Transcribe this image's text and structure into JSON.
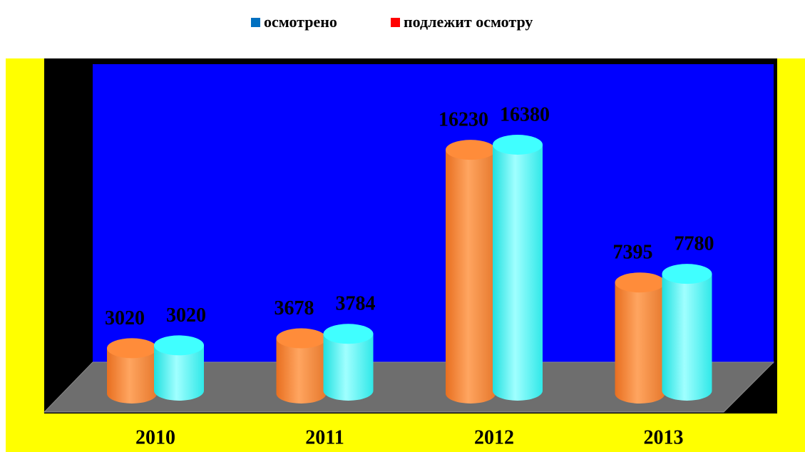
{
  "chart_data": {
    "type": "bar3d",
    "categories": [
      "2010",
      "2011",
      "2012",
      "2013"
    ],
    "series": [
      {
        "name": "осмотрено",
        "legend_color": "#0070c0",
        "color": "#ff8c3a",
        "values": [
          3020,
          3678,
          16230,
          7395
        ]
      },
      {
        "name": "подлежит осмотру",
        "legend_color": "#ff0000",
        "color": "#40ffff",
        "values": [
          3020,
          3784,
          16380,
          7780
        ]
      }
    ]
  }
}
